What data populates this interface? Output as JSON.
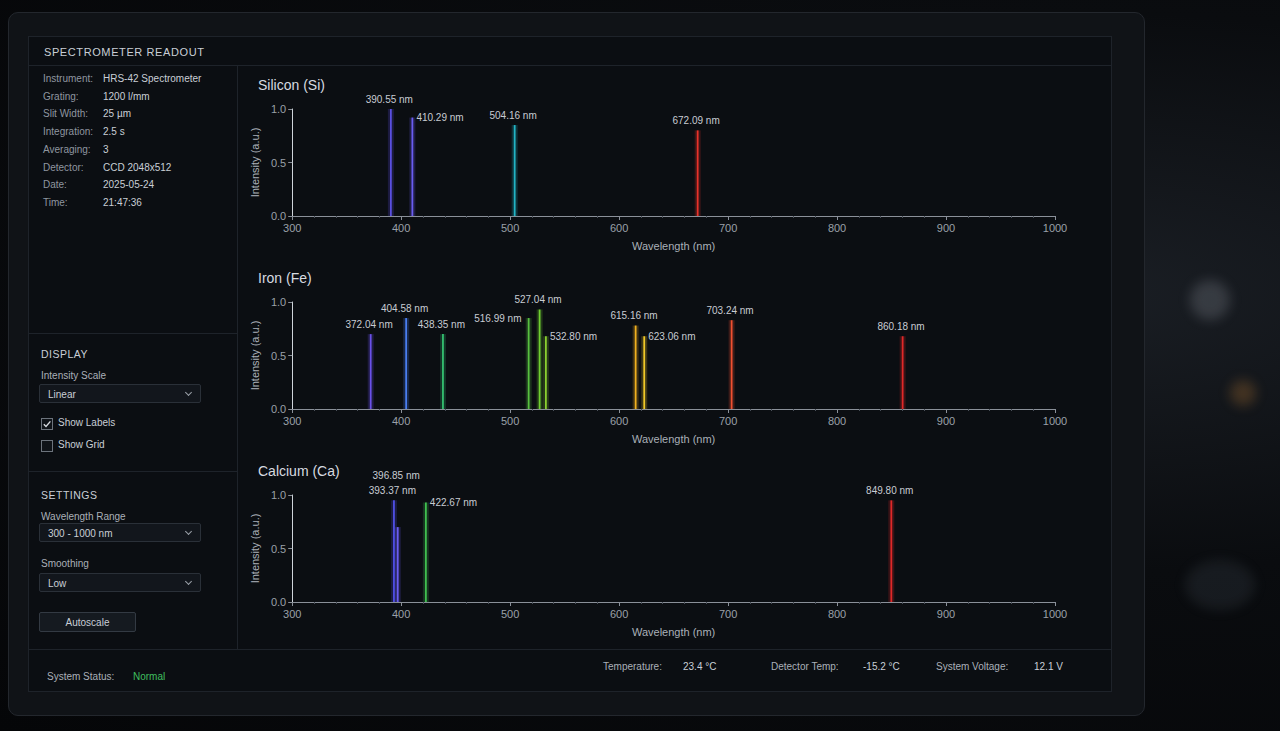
{
  "header": {
    "title": "SPECTROMETER READOUT"
  },
  "info": [
    {
      "label": "Instrument:",
      "value": "HRS-42 Spectrometer"
    },
    {
      "label": "Grating:",
      "value": "1200 l/mm"
    },
    {
      "label": "Slit Width:",
      "value": "25 µm"
    },
    {
      "label": "Integration:",
      "value": "2.5 s"
    },
    {
      "label": "Averaging:",
      "value": "3"
    },
    {
      "label": "Detector:",
      "value": "CCD 2048x512"
    },
    {
      "label": "Date:",
      "value": "2025-05-24"
    },
    {
      "label": "Time:",
      "value": "21:47:36"
    }
  ],
  "display": {
    "title": "DISPLAY",
    "intensity_scale": {
      "label": "Intensity Scale",
      "value": "Linear"
    },
    "checkboxes": [
      {
        "label": "Show Labels",
        "checked": true
      },
      {
        "label": "Show Grid",
        "checked": false
      }
    ]
  },
  "settings": {
    "title": "SETTINGS",
    "wavelength_range": {
      "label": "Wavelength Range",
      "value": "300 - 1000 nm"
    },
    "smoothing": {
      "label": "Smoothing",
      "value": "Low"
    },
    "button": "Autoscale"
  },
  "status": {
    "system_status": {
      "label": "System Status:",
      "value": "Normal"
    },
    "temperature": {
      "label": "Temperature:",
      "value": "23.4 °C"
    },
    "detector_temp": {
      "label": "Detector Temp:",
      "value": "-15.2 °C"
    },
    "system_voltage": {
      "label": "System Voltage:",
      "value": "12.1 V"
    }
  },
  "chart_data": [
    {
      "type": "stem",
      "title": "Silicon (Si)",
      "xlabel": "Wavelength (nm)",
      "ylabel": "Intensity (a.u.)",
      "x": [
        390.55,
        410.29,
        504.16,
        672.09
      ],
      "values": [
        1.0,
        0.92,
        0.85,
        0.8
      ],
      "peak_labels": [
        "390.55 nm",
        "410.29 nm",
        "504.16 nm",
        "672.09 nm"
      ],
      "colors": [
        "#5a4fe0",
        "#6a5cf0",
        "#22b4c4",
        "#e8322a"
      ],
      "xlim": [
        300,
        1000
      ],
      "xticks": [
        300,
        400,
        500,
        600,
        700,
        800,
        900,
        1000
      ],
      "ylim": [
        0,
        1
      ],
      "yticks": [
        {
          "value": 0,
          "label": "0.0"
        },
        {
          "value": 0.5,
          "label": "0.5"
        },
        {
          "value": 1,
          "label": "1.0"
        }
      ],
      "grid": false,
      "data_labels": true
    },
    {
      "type": "stem",
      "title": "Iron (Fe)",
      "xlabel": "Wavelength (nm)",
      "ylabel": "Intensity (a.u.)",
      "x": [
        372.04,
        404.58,
        438.35,
        516.99,
        527.04,
        532.8,
        615.16,
        623.06,
        703.24,
        860.18
      ],
      "values": [
        0.7,
        0.85,
        0.7,
        0.85,
        0.93,
        0.68,
        0.78,
        0.68,
        0.83,
        0.68
      ],
      "peak_labels": [
        "372.04 nm",
        "404.58 nm",
        "438.35 nm",
        "516.99 nm",
        "527.04 nm",
        "532.80 nm",
        "615.16 nm",
        "623.06 nm",
        "703.24 nm",
        "860.18 nm"
      ],
      "colors": [
        "#6a50e8",
        "#4a7ef0",
        "#34c070",
        "#58c040",
        "#70d030",
        "#8ad030",
        "#f0b020",
        "#f0c828",
        "#f05030",
        "#e02828"
      ],
      "xlim": [
        300,
        1000
      ],
      "xticks": [
        300,
        400,
        500,
        600,
        700,
        800,
        900,
        1000
      ],
      "ylim": [
        0,
        1
      ],
      "yticks": [
        {
          "value": 0,
          "label": "0.0"
        },
        {
          "value": 0.5,
          "label": "0.5"
        },
        {
          "value": 1,
          "label": "1.0"
        }
      ],
      "grid": false,
      "data_labels": true
    },
    {
      "type": "stem",
      "title": "Calcium (Ca)",
      "xlabel": "Wavelength (nm)",
      "ylabel": "Intensity (a.u.)",
      "x": [
        393.37,
        396.85,
        422.67,
        849.8
      ],
      "values": [
        0.95,
        0.7,
        0.93,
        0.95
      ],
      "peak_labels": [
        "393.37 nm",
        "396.85 nm",
        "422.67 nm",
        "849.80 nm"
      ],
      "colors": [
        "#5050e8",
        "#6a5cf0",
        "#40c050",
        "#e02828"
      ],
      "xlim": [
        300,
        1000
      ],
      "xticks": [
        300,
        400,
        500,
        600,
        700,
        800,
        900,
        1000
      ],
      "ylim": [
        0,
        1
      ],
      "yticks": [
        {
          "value": 0,
          "label": "0.0"
        },
        {
          "value": 0.5,
          "label": "0.5"
        },
        {
          "value": 1,
          "label": "1.0"
        }
      ],
      "grid": false,
      "data_labels": true
    }
  ]
}
